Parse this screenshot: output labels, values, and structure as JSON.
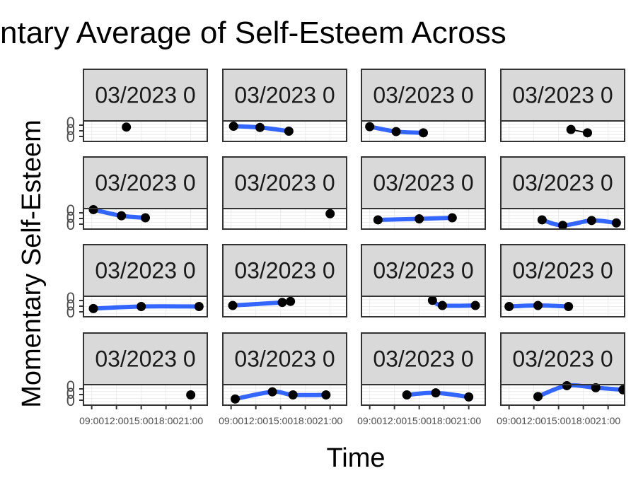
{
  "chart_data": {
    "type": "line",
    "title": "ntary Average of Self-Esteem Across",
    "xlabel": "Time",
    "ylabel": "Momentary Self-Esteem",
    "x_ticks": [
      "09:00",
      "12:00",
      "15:00",
      "18:00",
      "21:00"
    ],
    "x_tick_hours": [
      9,
      12,
      15,
      18,
      21
    ],
    "xlim_hours": [
      8,
      23
    ],
    "y_tick_labels": [
      "0",
      "0",
      "0"
    ],
    "ylim": [
      0,
      1
    ],
    "grid": true,
    "smooth_color": "#3366ff",
    "point_color": "#000000",
    "panel_background": "#ffffff",
    "strip_background": "#d9d9d9",
    "facet_rows": 4,
    "facet_cols": 4,
    "panels": [
      {
        "strip": "03/2023 0",
        "x": [
          13.2
        ],
        "y": [
          0.7
        ]
      },
      {
        "strip": "03/2023 0",
        "x": [
          9.3,
          12.5,
          16.0
        ],
        "y": [
          0.74,
          0.68,
          0.5
        ],
        "smooth": true
      },
      {
        "strip": "03/2023 0",
        "x": [
          9.0,
          12.2,
          15.5
        ],
        "y": [
          0.72,
          0.48,
          0.42
        ],
        "smooth": true
      },
      {
        "strip": "03/2023 0",
        "x": [
          16.5,
          18.5
        ],
        "y": [
          0.58,
          0.42
        ]
      },
      {
        "strip": "03/2023 0",
        "x": [
          9.2,
          12.6,
          15.5
        ],
        "y": [
          0.95,
          0.65,
          0.55
        ],
        "smooth": true
      },
      {
        "strip": "03/2023 0",
        "x": [
          21.0
        ],
        "y": [
          0.75
        ]
      },
      {
        "strip": "03/2023 0",
        "x": [
          10.0,
          15.0,
          19.0
        ],
        "y": [
          0.45,
          0.5,
          0.55
        ],
        "smooth": true
      },
      {
        "strip": "03/2023 0",
        "x": [
          13.0,
          15.5,
          19.0,
          22.0
        ],
        "y": [
          0.45,
          0.18,
          0.42,
          0.3
        ],
        "smooth": true
      },
      {
        "strip": "03/2023 0",
        "x": [
          9.2,
          15.0,
          22.0
        ],
        "y": [
          0.4,
          0.5,
          0.5
        ],
        "smooth": true
      },
      {
        "strip": "03/2023 0",
        "x": [
          9.2,
          15.2,
          16.2
        ],
        "y": [
          0.55,
          0.7,
          0.75
        ],
        "smooth": true
      },
      {
        "strip": "03/2023 0",
        "x": [
          16.6,
          17.8,
          21.8
        ],
        "y": [
          0.8,
          0.55,
          0.55
        ],
        "smooth": true
      },
      {
        "strip": "03/2023 0",
        "x": [
          9.0,
          12.5,
          16.2
        ],
        "y": [
          0.5,
          0.55,
          0.5
        ],
        "smooth": true
      },
      {
        "strip": "03/2023 0",
        "x": [
          21.0
        ],
        "y": [
          0.5
        ]
      },
      {
        "strip": "03/2023 0",
        "x": [
          9.5,
          14.0,
          16.5,
          20.5
        ],
        "y": [
          0.3,
          0.65,
          0.5,
          0.5
        ],
        "smooth": true
      },
      {
        "strip": "03/2023 0",
        "x": [
          13.5,
          17.0,
          21.0
        ],
        "y": [
          0.5,
          0.6,
          0.4
        ],
        "smooth": true
      },
      {
        "strip": "03/2023 0",
        "x": [
          12.5,
          16.0,
          19.5,
          22.8
        ],
        "y": [
          0.42,
          0.95,
          0.85,
          0.75
        ],
        "smooth": true
      }
    ]
  }
}
